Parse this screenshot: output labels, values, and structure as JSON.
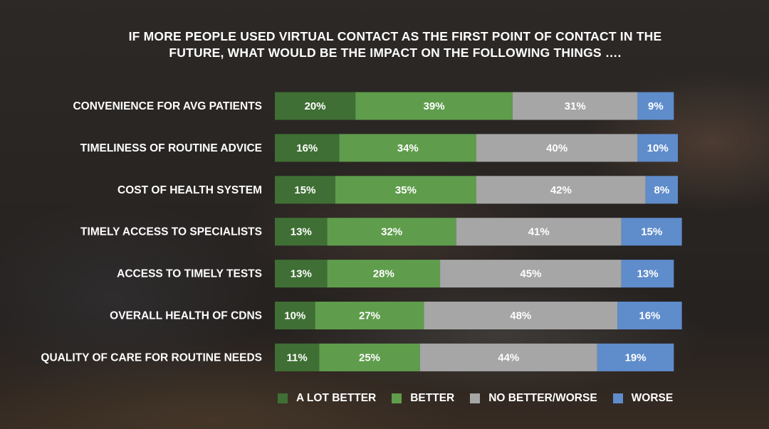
{
  "title_lines": [
    "IF MORE PEOPLE USED VIRTUAL CONTACT AS THE FIRST POINT OF CONTACT IN THE",
    "FUTURE, WHAT WOULD BE THE IMPACT ON THE FOLLOWING THINGS …."
  ],
  "colors": {
    "a_lot_better": "#3f6f34",
    "better": "#5f9d4c",
    "no_better_worse": "#a6a6a6",
    "worse": "#5f8ccb"
  },
  "chart_data": {
    "type": "bar",
    "orientation": "horizontal",
    "stacked": true,
    "title": "IF MORE PEOPLE USED VIRTUAL CONTACT AS THE FIRST POINT OF CONTACT IN THE FUTURE, WHAT WOULD BE THE IMPACT ON THE FOLLOWING THINGS ….",
    "categories": [
      "CONVENIENCE FOR AVG PATIENTS",
      "TIMELINESS OF ROUTINE ADVICE",
      "COST OF HEALTH SYSTEM",
      "TIMELY ACCESS TO SPECIALISTS",
      "ACCESS TO TIMELY TESTS",
      "OVERALL HEALTH OF CDNS",
      "QUALITY OF CARE FOR ROUTINE NEEDS"
    ],
    "series": [
      {
        "name": "A LOT BETTER",
        "color": "#3f6f34",
        "values": [
          20,
          16,
          15,
          13,
          13,
          10,
          11
        ]
      },
      {
        "name": "BETTER",
        "color": "#5f9d4c",
        "values": [
          39,
          34,
          35,
          32,
          28,
          27,
          25
        ]
      },
      {
        "name": "NO BETTER/WORSE",
        "color": "#a6a6a6",
        "values": [
          31,
          40,
          42,
          41,
          45,
          48,
          44
        ]
      },
      {
        "name": "WORSE",
        "color": "#5f8ccb",
        "values": [
          9,
          10,
          8,
          15,
          13,
          16,
          19
        ]
      }
    ],
    "value_suffix": "%",
    "xlim": [
      0,
      100
    ],
    "grid": false,
    "legend_position": "bottom"
  }
}
